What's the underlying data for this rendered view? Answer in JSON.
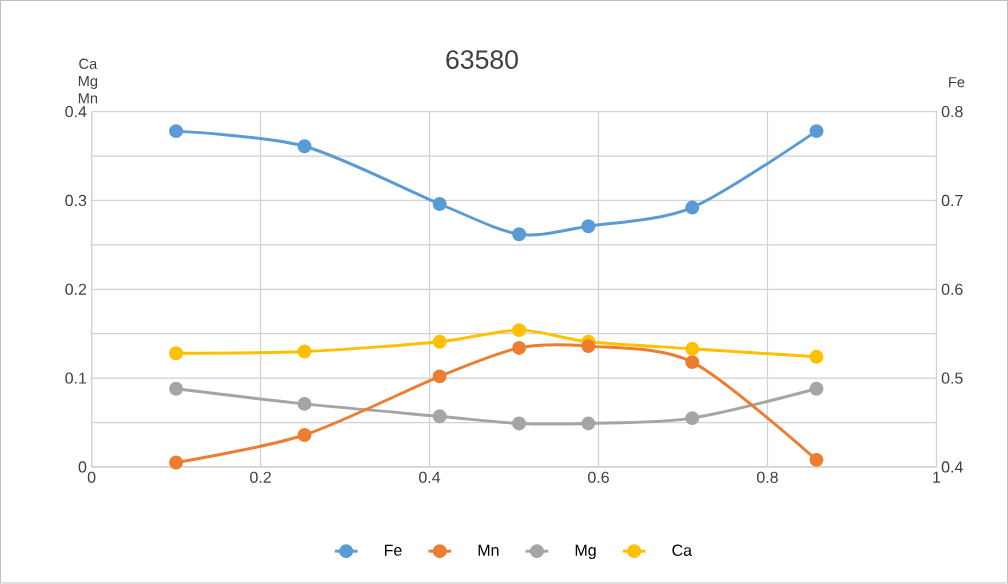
{
  "chart_data": {
    "type": "line",
    "title": "63580",
    "ylabel": "Ca Mg Mn",
    "y2label": "Fe",
    "x": [
      0.1,
      0.252,
      0.412,
      0.506,
      0.588,
      0.711,
      0.858
    ],
    "series": [
      {
        "name": "Fe",
        "color": "#5b9bd5",
        "axis": "y2",
        "values": [
          0.778,
          0.761,
          0.696,
          0.662,
          0.671,
          0.692,
          0.778
        ]
      },
      {
        "name": "Mn",
        "color": "#ed7d31",
        "values": [
          0.005,
          0.036,
          0.102,
          0.134,
          0.136,
          0.118,
          0.008
        ]
      },
      {
        "name": "Mg",
        "color": "#a5a5a5",
        "values": [
          0.088,
          0.071,
          0.057,
          0.049,
          0.049,
          0.055,
          0.088
        ]
      },
      {
        "name": "Ca",
        "color": "#ffc000",
        "values": [
          0.128,
          0.13,
          0.141,
          0.154,
          0.141,
          0.133,
          0.124
        ]
      }
    ],
    "xlim": [
      0,
      1
    ],
    "xticks": [
      0,
      0.2,
      0.4,
      0.6,
      0.8,
      1
    ],
    "ylim": [
      0,
      0.4
    ],
    "yticks": [
      0,
      {
        "value": 0.05,
        "label": null
      },
      0.1,
      {
        "value": 0.15,
        "label": null
      },
      0.2,
      {
        "value": 0.25,
        "label": null
      },
      0.3,
      {
        "value": 0.35,
        "label": null
      },
      0.4
    ],
    "y2lim": [
      0.4,
      0.8
    ],
    "y2ticks": [
      0.4,
      0.5,
      0.6,
      0.7,
      0.8
    ],
    "grid": true,
    "legend": "bottom",
    "marker": "circle"
  }
}
